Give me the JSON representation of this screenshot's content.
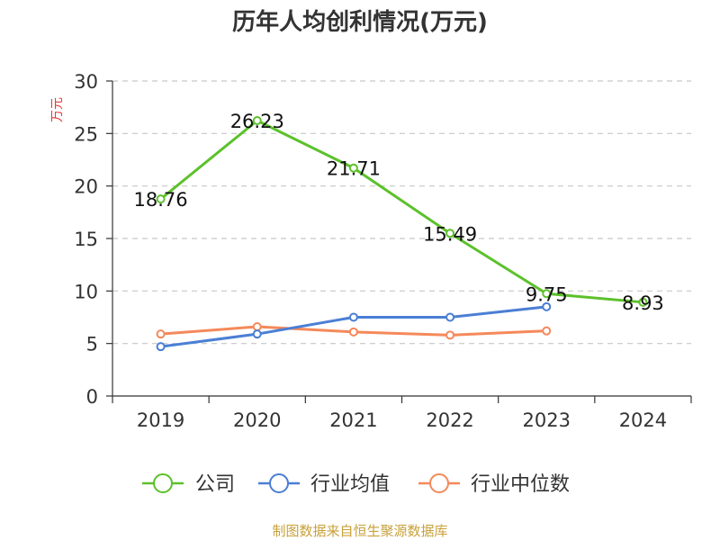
{
  "chart_data": {
    "type": "line",
    "title": "历年人均创利情况(万元)",
    "ylabel": "万元",
    "xlabel": "",
    "categories": [
      "2019",
      "2020",
      "2021",
      "2022",
      "2023",
      "2024"
    ],
    "ylim": [
      0,
      30
    ],
    "yticks": [
      "0",
      "5",
      "10",
      "15",
      "20",
      "25",
      "30"
    ],
    "grid": true,
    "legend_position": "bottom",
    "series": [
      {
        "name": "公司",
        "color": "#5cc12b",
        "values": [
          18.76,
          26.23,
          21.71,
          15.49,
          9.75,
          8.93
        ],
        "labels": [
          "18.76",
          "26.23",
          "21.71",
          "15.49",
          "9.75",
          "8.93"
        ]
      },
      {
        "name": "行业均值",
        "color": "#4a7fd4",
        "values": [
          4.7,
          5.9,
          7.5,
          7.5,
          8.5,
          null
        ]
      },
      {
        "name": "行业中位数",
        "color": "#f5895a",
        "values": [
          5.9,
          6.6,
          6.1,
          5.8,
          6.2,
          null
        ]
      }
    ]
  },
  "colors": {
    "ylabel": "#e53935",
    "source": "#c8a13a"
  },
  "source_text": "制图数据来自恒生聚源数据库"
}
